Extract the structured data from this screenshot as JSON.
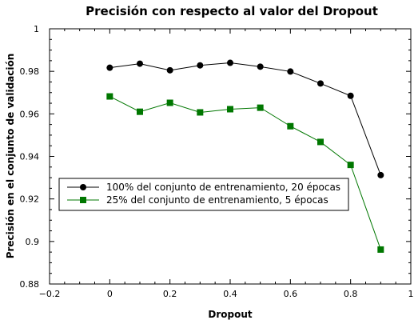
{
  "chart_data": {
    "type": "line",
    "title": "Precisión con respecto al valor del Dropout",
    "xlabel": "Dropout",
    "ylabel": "Precisión en el conjunto de validación",
    "xlim": [
      -0.2,
      1
    ],
    "ylim": [
      0.88,
      1
    ],
    "xticks": [
      -0.2,
      0,
      0.2,
      0.4,
      0.6,
      0.8,
      1
    ],
    "xtick_labels": [
      "−0.2",
      "0",
      "0.2",
      "0.4",
      "0.6",
      "0.8",
      "1"
    ],
    "yticks": [
      0.88,
      0.9,
      0.92,
      0.94,
      0.96,
      0.98,
      1
    ],
    "ytick_labels": [
      "0.88",
      "0.9",
      "0.92",
      "0.94",
      "0.96",
      "0.98",
      "1"
    ],
    "grid": false,
    "legend_position": "left-middle",
    "series": [
      {
        "name": "100% del conjunto de entrenamiento, 20 épocas",
        "color": "#000000",
        "marker": "circle",
        "x": [
          0,
          0.1,
          0.2,
          0.3,
          0.4,
          0.5,
          0.6,
          0.7,
          0.8,
          0.9
        ],
        "y": [
          0.9817,
          0.9836,
          0.9805,
          0.9828,
          0.984,
          0.9822,
          0.9799,
          0.9743,
          0.9685,
          0.9312
        ]
      },
      {
        "name": "25% del conjunto de entrenamiento, 5 épocas",
        "color": "#007700",
        "marker": "square",
        "x": [
          0,
          0.1,
          0.2,
          0.3,
          0.4,
          0.5,
          0.6,
          0.7,
          0.8,
          0.9
        ],
        "y": [
          0.9682,
          0.961,
          0.9652,
          0.9607,
          0.9622,
          0.9629,
          0.9542,
          0.9468,
          0.936,
          0.8962
        ]
      }
    ]
  }
}
